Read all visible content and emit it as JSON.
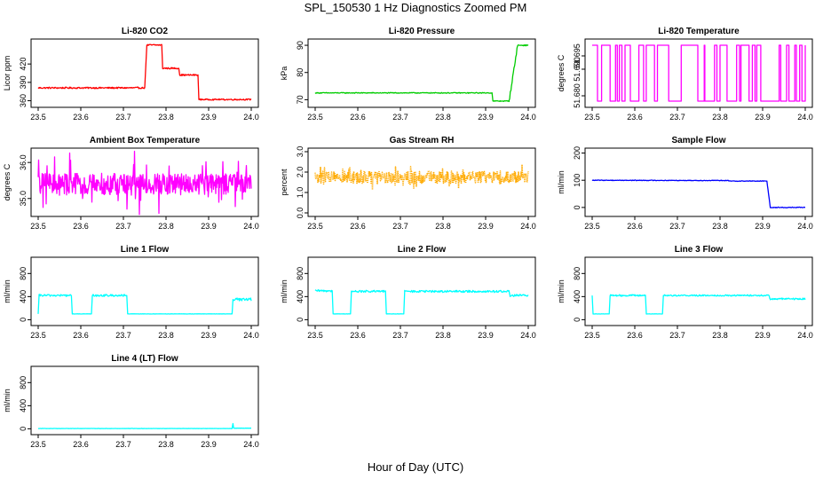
{
  "title": "SPL_150530  1 Hz Diagnostics Zoomed PM",
  "xlabel": "Hour of Day (UTC)",
  "x_ticks": [
    "23.5",
    "23.6",
    "23.7",
    "23.8",
    "23.9",
    "24.0"
  ],
  "chart_data": [
    {
      "type": "line",
      "title": "Li-820 CO2",
      "ylabel": "Licor ppm",
      "color": "#ff0000",
      "xlim": [
        23.5,
        24.0
      ],
      "ylim": [
        355,
        455
      ],
      "yticks": [
        {
          "v": 360,
          "label": "360"
        },
        {
          "v": 390,
          "label": "390"
        },
        {
          "v": 420,
          "label": "420"
        }
      ],
      "series": [
        {
          "segments": [
            {
              "x": [
                23.5,
                23.75
              ],
              "y": [
                381,
                381
              ],
              "noise": 1.2
            },
            {
              "x": [
                23.75,
                23.755
              ],
              "y": [
                381,
                451
              ],
              "noise": 0
            },
            {
              "x": [
                23.755,
                23.79
              ],
              "y": [
                451,
                451
              ],
              "noise": 1.2
            },
            {
              "x": [
                23.79,
                23.792
              ],
              "y": [
                451,
                413
              ],
              "noise": 0
            },
            {
              "x": [
                23.792,
                23.83
              ],
              "y": [
                413,
                413
              ],
              "noise": 1.2
            },
            {
              "x": [
                23.83,
                23.832
              ],
              "y": [
                413,
                402
              ],
              "noise": 0
            },
            {
              "x": [
                23.832,
                23.875
              ],
              "y": [
                402,
                402
              ],
              "noise": 1.2
            },
            {
              "x": [
                23.875,
                23.877
              ],
              "y": [
                402,
                362
              ],
              "noise": 0
            },
            {
              "x": [
                23.877,
                24.0
              ],
              "y": [
                362,
                362
              ],
              "noise": 1.0
            }
          ]
        }
      ]
    },
    {
      "type": "line",
      "title": "Li-820 Pressure",
      "ylabel": "kPa",
      "color": "#00cc00",
      "xlim": [
        23.5,
        24.0
      ],
      "ylim": [
        68.5,
        91
      ],
      "yticks": [
        {
          "v": 70,
          "label": "70"
        },
        {
          "v": 80,
          "label": "80"
        },
        {
          "v": 90,
          "label": "90"
        }
      ],
      "series": [
        {
          "segments": [
            {
              "x": [
                23.5,
                23.915
              ],
              "y": [
                72.5,
                72.5
              ],
              "noise": 0.15
            },
            {
              "x": [
                23.915,
                23.917
              ],
              "y": [
                72.5,
                69.5
              ],
              "noise": 0
            },
            {
              "x": [
                23.917,
                23.955
              ],
              "y": [
                69.5,
                69.5
              ],
              "noise": 0.15
            },
            {
              "x": [
                23.955,
                23.975
              ],
              "y": [
                69.5,
                90
              ],
              "noise": 0.6
            },
            {
              "x": [
                23.975,
                24.0
              ],
              "y": [
                90,
                90
              ],
              "noise": 0.2
            }
          ]
        }
      ]
    },
    {
      "type": "line",
      "title": "Li-820 Temperature",
      "ylabel": "degrees C",
      "color": "#ff00ff",
      "xlim": [
        23.5,
        24.0
      ],
      "ylim": [
        51.677,
        51.7
      ],
      "yticks": [
        {
          "v": 51.68,
          "label": "51.680"
        },
        {
          "v": 51.69,
          "label": "51.690"
        },
        {
          "v": 51.695,
          "label": "51.695"
        }
      ],
      "series": [
        {
          "segments": [
            {
              "x": [
                23.5,
                24.0
              ],
              "y": [
                51.678,
                51.699
              ],
              "noise": 0,
              "pattern": "dense-binary"
            }
          ]
        }
      ]
    },
    {
      "type": "line",
      "title": "Ambient Box Temperature",
      "ylabel": "degrees C",
      "color": "#ff00ff",
      "xlim": [
        23.5,
        24.0
      ],
      "ylim": [
        34.6,
        36.3
      ],
      "yticks": [
        {
          "v": 35.0,
          "label": "35.0"
        },
        {
          "v": 36.0,
          "label": "36.0"
        }
      ],
      "series": [
        {
          "segments": [
            {
              "x": [
                23.5,
                24.0
              ],
              "y": [
                35.1,
                35.7
              ],
              "noise": 0.25,
              "pattern": "dense-band"
            }
          ]
        }
      ]
    },
    {
      "type": "scatter",
      "title": "Gas Stream RH",
      "ylabel": "percent",
      "color": "#ffaa00",
      "xlim": [
        23.5,
        24.0
      ],
      "ylim": [
        0,
        3.0
      ],
      "yticks": [
        {
          "v": 0.0,
          "label": "0.0"
        },
        {
          "v": 1.0,
          "label": "1.0"
        },
        {
          "v": 2.0,
          "label": "2.0"
        },
        {
          "v": 3.0,
          "label": "3.0"
        }
      ],
      "series": [
        {
          "segments": [
            {
              "x": [
                23.5,
                24.0
              ],
              "y": [
                1.45,
                2.05
              ],
              "noise": 0.15,
              "pattern": "dense-band"
            }
          ]
        }
      ]
    },
    {
      "type": "line",
      "title": "Sample Flow",
      "ylabel": "ml/min",
      "color": "#0000ff",
      "xlim": [
        23.5,
        24.0
      ],
      "ylim": [
        -20,
        205
      ],
      "yticks": [
        {
          "v": 0,
          "label": "0"
        },
        {
          "v": 100,
          "label": "100"
        },
        {
          "v": 200,
          "label": "200"
        }
      ],
      "series": [
        {
          "segments": [
            {
              "x": [
                23.5,
                23.82
              ],
              "y": [
                100,
                99
              ],
              "noise": 1.2
            },
            {
              "x": [
                23.82,
                23.91
              ],
              "y": [
                97,
                97
              ],
              "noise": 1.2
            },
            {
              "x": [
                23.91,
                23.918
              ],
              "y": [
                97,
                0
              ],
              "noise": 0
            },
            {
              "x": [
                23.918,
                24.0
              ],
              "y": [
                0,
                0
              ],
              "noise": 1.5
            }
          ]
        }
      ]
    },
    {
      "type": "line",
      "title": "Line 1 Flow",
      "ylabel": "ml/min",
      "color": "#00ffff",
      "xlim": [
        23.5,
        24.0
      ],
      "ylim": [
        -40,
        1020
      ],
      "yticks": [
        {
          "v": 0,
          "label": "0"
        },
        {
          "v": 400,
          "label": "400"
        },
        {
          "v": 800,
          "label": "800"
        }
      ],
      "series": [
        {
          "segments": [
            {
              "x": [
                23.5,
                23.502
              ],
              "y": [
                100,
                420
              ],
              "noise": 0
            },
            {
              "x": [
                23.502,
                23.578
              ],
              "y": [
                420,
                420
              ],
              "noise": 18
            },
            {
              "x": [
                23.578,
                23.58
              ],
              "y": [
                420,
                100
              ],
              "noise": 0
            },
            {
              "x": [
                23.58,
                23.625
              ],
              "y": [
                100,
                100
              ],
              "noise": 2
            },
            {
              "x": [
                23.625,
                23.627
              ],
              "y": [
                100,
                420
              ],
              "noise": 0
            },
            {
              "x": [
                23.627,
                23.708
              ],
              "y": [
                420,
                420
              ],
              "noise": 18
            },
            {
              "x": [
                23.708,
                23.71
              ],
              "y": [
                420,
                100
              ],
              "noise": 0
            },
            {
              "x": [
                23.71,
                23.955
              ],
              "y": [
                100,
                100
              ],
              "noise": 2
            },
            {
              "x": [
                23.955,
                23.957
              ],
              "y": [
                100,
                350
              ],
              "noise": 0
            },
            {
              "x": [
                23.957,
                24.0
              ],
              "y": [
                350,
                350
              ],
              "noise": 25
            }
          ]
        }
      ]
    },
    {
      "type": "line",
      "title": "Line 2 Flow",
      "ylabel": "ml/min",
      "color": "#00ffff",
      "xlim": [
        23.5,
        24.0
      ],
      "ylim": [
        -40,
        1020
      ],
      "yticks": [
        {
          "v": 0,
          "label": "0"
        },
        {
          "v": 400,
          "label": "400"
        },
        {
          "v": 800,
          "label": "800"
        }
      ],
      "series": [
        {
          "segments": [
            {
              "x": [
                23.5,
                23.54
              ],
              "y": [
                500,
                500
              ],
              "noise": 18
            },
            {
              "x": [
                23.54,
                23.542
              ],
              "y": [
                500,
                100
              ],
              "noise": 0
            },
            {
              "x": [
                23.542,
                23.583
              ],
              "y": [
                100,
                100
              ],
              "noise": 2
            },
            {
              "x": [
                23.583,
                23.585
              ],
              "y": [
                100,
                490
              ],
              "noise": 0
            },
            {
              "x": [
                23.585,
                23.665
              ],
              "y": [
                490,
                490
              ],
              "noise": 18
            },
            {
              "x": [
                23.665,
                23.667
              ],
              "y": [
                490,
                100
              ],
              "noise": 0
            },
            {
              "x": [
                23.667,
                23.708
              ],
              "y": [
                100,
                100
              ],
              "noise": 2
            },
            {
              "x": [
                23.708,
                23.71
              ],
              "y": [
                100,
                490
              ],
              "noise": 0
            },
            {
              "x": [
                23.71,
                23.955
              ],
              "y": [
                490,
                490
              ],
              "noise": 18
            },
            {
              "x": [
                23.955,
                23.957
              ],
              "y": [
                490,
                420
              ],
              "noise": 0
            },
            {
              "x": [
                23.957,
                24.0
              ],
              "y": [
                420,
                420
              ],
              "noise": 20
            }
          ]
        }
      ]
    },
    {
      "type": "line",
      "title": "Line 3 Flow",
      "ylabel": "ml/min",
      "color": "#00ffff",
      "xlim": [
        23.5,
        24.0
      ],
      "ylim": [
        -40,
        1020
      ],
      "yticks": [
        {
          "v": 0,
          "label": "0"
        },
        {
          "v": 400,
          "label": "400"
        },
        {
          "v": 800,
          "label": "800"
        }
      ],
      "series": [
        {
          "segments": [
            {
              "x": [
                23.5,
                23.502
              ],
              "y": [
                420,
                100
              ],
              "noise": 0
            },
            {
              "x": [
                23.502,
                23.54
              ],
              "y": [
                100,
                100
              ],
              "noise": 2
            },
            {
              "x": [
                23.54,
                23.542
              ],
              "y": [
                100,
                420
              ],
              "noise": 0
            },
            {
              "x": [
                23.542,
                23.625
              ],
              "y": [
                420,
                420
              ],
              "noise": 15
            },
            {
              "x": [
                23.625,
                23.627
              ],
              "y": [
                420,
                100
              ],
              "noise": 0
            },
            {
              "x": [
                23.627,
                23.665
              ],
              "y": [
                100,
                100
              ],
              "noise": 2
            },
            {
              "x": [
                23.665,
                23.667
              ],
              "y": [
                100,
                420
              ],
              "noise": 0
            },
            {
              "x": [
                23.667,
                23.915
              ],
              "y": [
                420,
                420
              ],
              "noise": 12
            },
            {
              "x": [
                23.915,
                23.917
              ],
              "y": [
                420,
                360
              ],
              "noise": 0
            },
            {
              "x": [
                23.917,
                24.0
              ],
              "y": [
                360,
                360
              ],
              "noise": 15
            }
          ]
        }
      ]
    },
    {
      "type": "line",
      "title": "Line 4 (LT) Flow",
      "ylabel": "ml/min",
      "color": "#00ffff",
      "xlim": [
        23.5,
        24.0
      ],
      "ylim": [
        -40,
        1020
      ],
      "yticks": [
        {
          "v": 0,
          "label": "0"
        },
        {
          "v": 400,
          "label": "400"
        },
        {
          "v": 800,
          "label": "800"
        }
      ],
      "series": [
        {
          "segments": [
            {
              "x": [
                23.5,
                23.955
              ],
              "y": [
                5,
                5
              ],
              "noise": 2
            },
            {
              "x": [
                23.955,
                23.957
              ],
              "y": [
                5,
                90
              ],
              "noise": 0
            },
            {
              "x": [
                23.957,
                23.959
              ],
              "y": [
                90,
                10
              ],
              "noise": 0
            },
            {
              "x": [
                23.959,
                24.0
              ],
              "y": [
                10,
                10
              ],
              "noise": 2
            }
          ]
        }
      ]
    }
  ]
}
